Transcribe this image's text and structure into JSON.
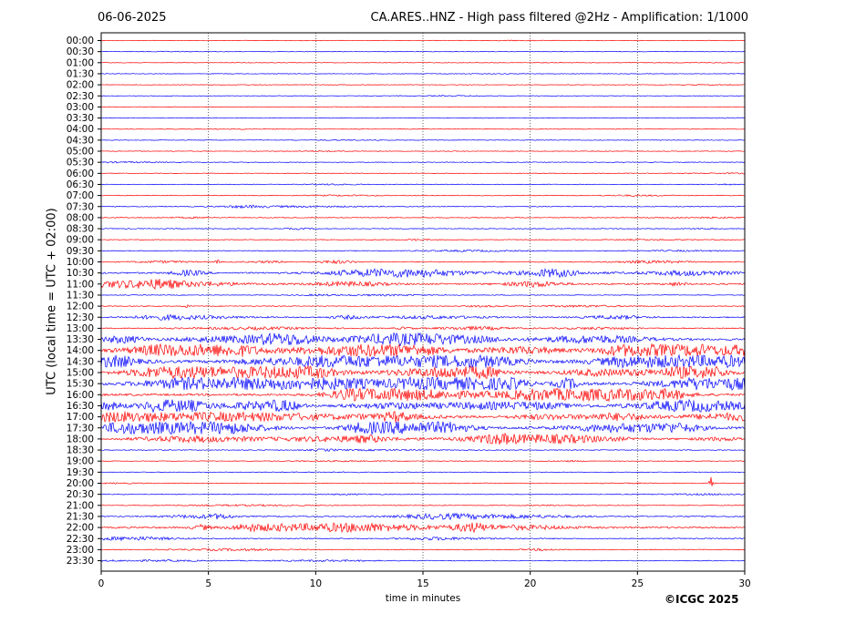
{
  "header": {
    "date": "06-06-2025",
    "title": "CA.ARES..HNZ - High pass filtered @2Hz - Amplification: 1/1000"
  },
  "footer": {
    "copyright": "©ICGC 2025"
  },
  "chart_data": {
    "type": "line",
    "title": "CA.ARES..HNZ - High pass filtered @2Hz - Amplification: 1/1000",
    "xlabel": "time in minutes",
    "ylabel": "UTC (local time = UTC + 02:00)",
    "xlim": [
      0,
      30
    ],
    "x_ticks": [
      0,
      5,
      10,
      15,
      20,
      25,
      30
    ],
    "grid": "vertical dotted lines at x = 5, 10, 15, 20, 25",
    "trace_colors": [
      "#ff0000",
      "#0000ff"
    ],
    "rows": [
      "00:00",
      "00:30",
      "01:00",
      "01:30",
      "02:00",
      "02:30",
      "03:00",
      "03:30",
      "04:00",
      "04:30",
      "05:00",
      "05:30",
      "06:00",
      "06:30",
      "07:00",
      "07:30",
      "08:00",
      "08:30",
      "09:00",
      "09:30",
      "10:00",
      "10:30",
      "11:00",
      "11:30",
      "12:00",
      "12:30",
      "13:00",
      "13:30",
      "14:00",
      "14:30",
      "15:00",
      "15:30",
      "16:00",
      "16:30",
      "17:00",
      "17:30",
      "18:00",
      "18:30",
      "19:00",
      "19:30",
      "20:00",
      "20:30",
      "21:00",
      "21:30",
      "22:00",
      "22:30",
      "23:00",
      "23:30"
    ],
    "activity": [
      0.2,
      0.2,
      0.2,
      0.2,
      0.2,
      0.3,
      0.2,
      0.3,
      0.2,
      0.3,
      0.3,
      0.4,
      0.4,
      0.5,
      0.5,
      0.7,
      0.6,
      0.6,
      0.6,
      0.6,
      1.2,
      2.2,
      2.2,
      0.5,
      0.8,
      1.5,
      1.2,
      3.0,
      4.0,
      4.0,
      4.0,
      4.5,
      3.5,
      3.5,
      3.0,
      3.5,
      2.2,
      0.8,
      0.5,
      0.3,
      0.5,
      0.5,
      0.5,
      1.5,
      2.5,
      1.2,
      0.7,
      0.6
    ],
    "events": [
      {
        "row": "20:00",
        "x": 28.45,
        "amplitude": 7
      },
      {
        "row": "10:00",
        "x": 5.4,
        "amplitude": 2
      },
      {
        "row": "12:00",
        "x": 4.0,
        "amplitude": 2.5
      }
    ]
  }
}
